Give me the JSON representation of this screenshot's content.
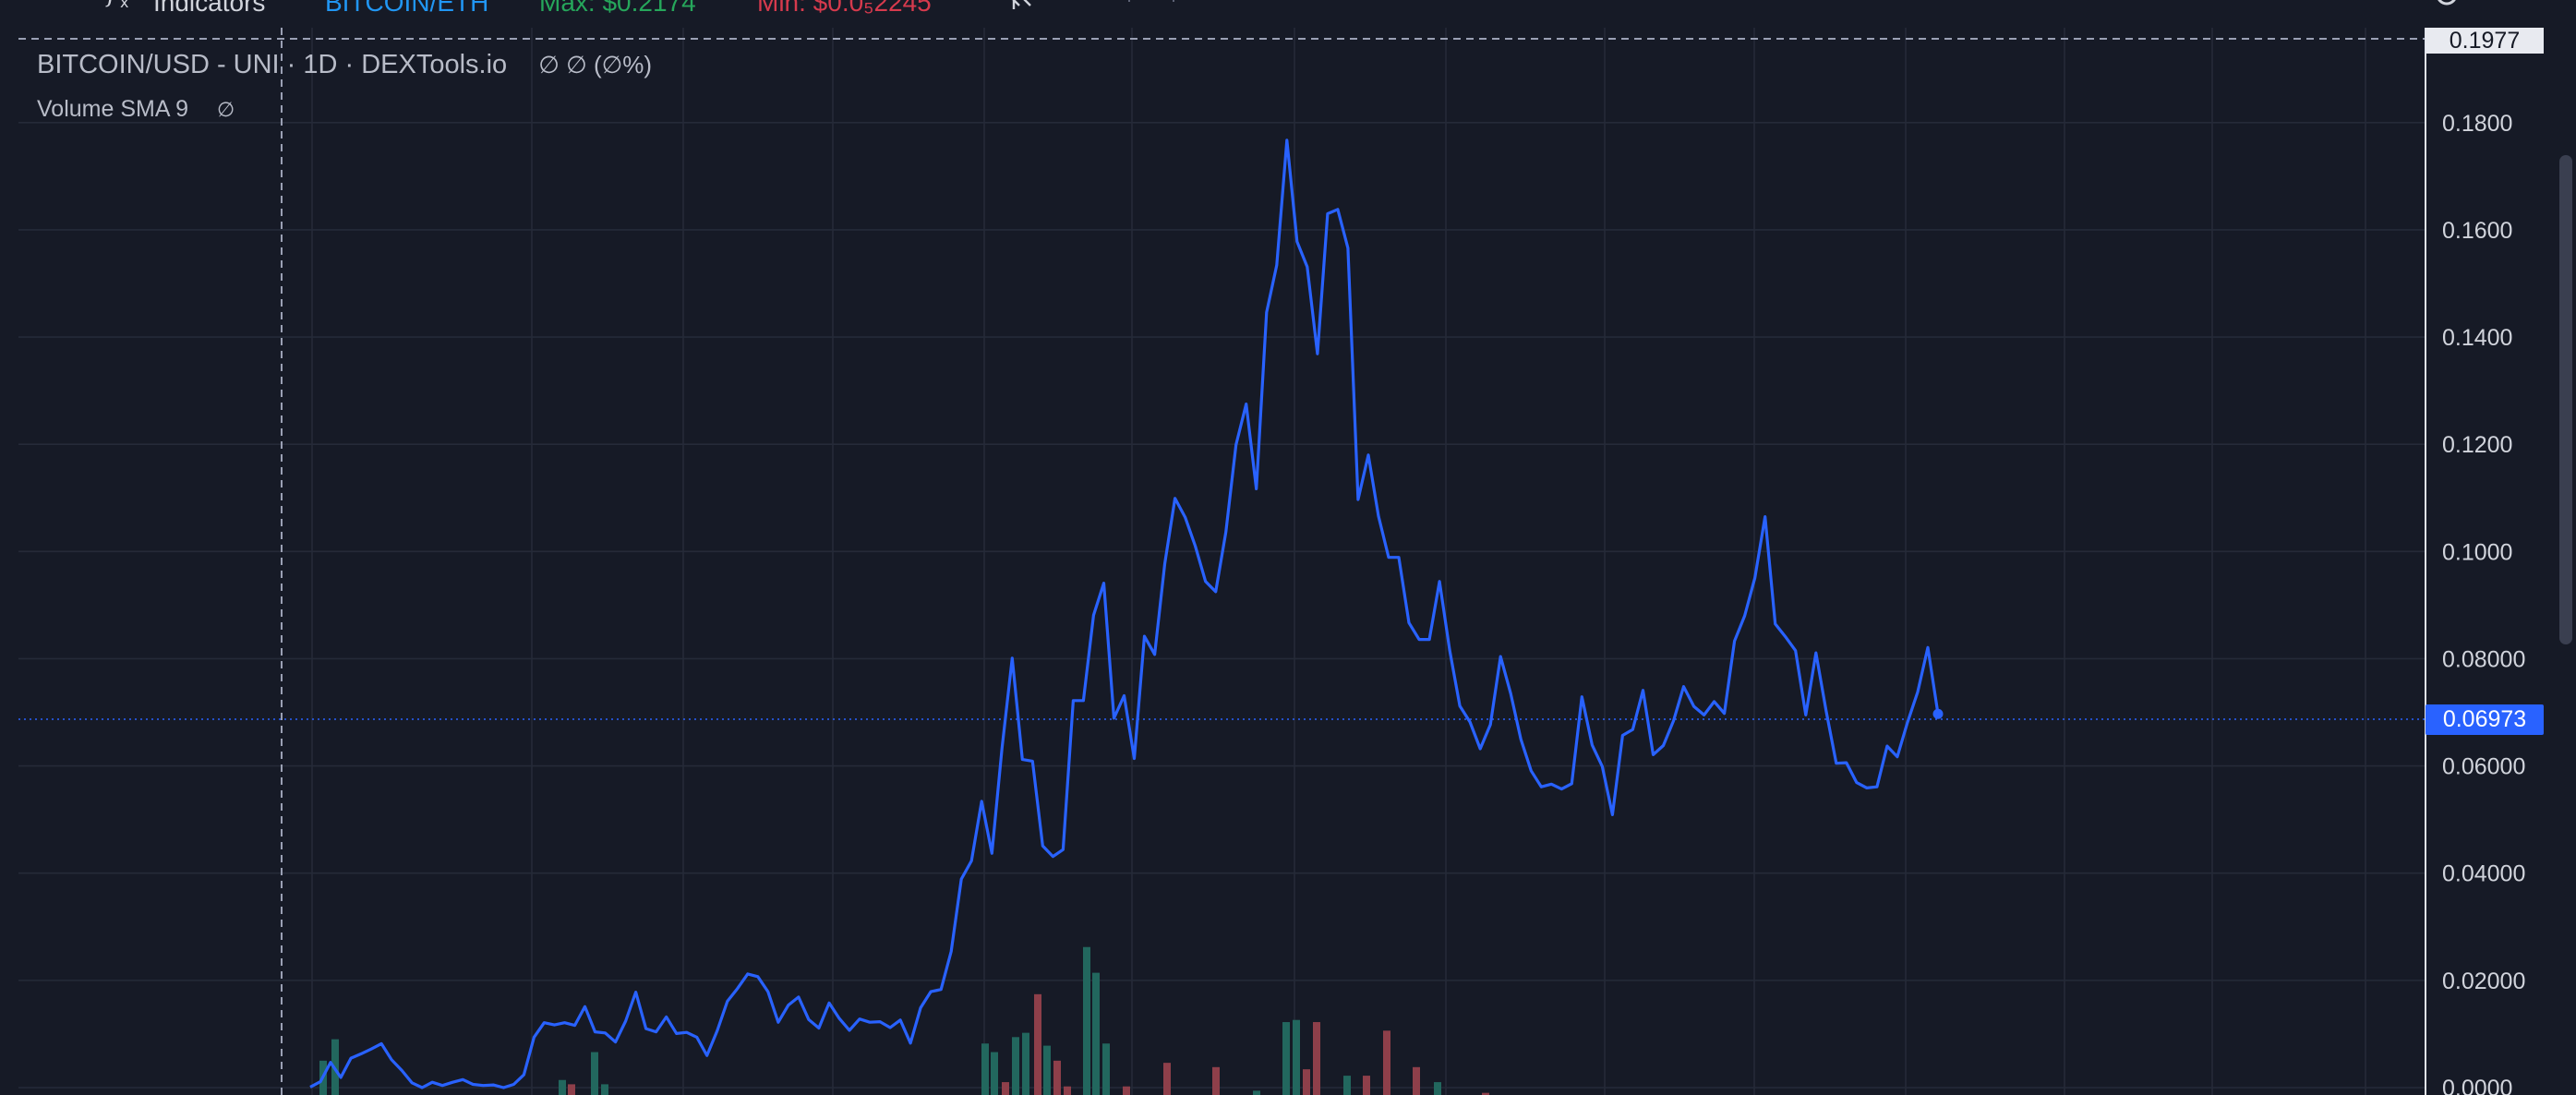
{
  "toolbar": {
    "indicators_label": "Indicators",
    "pair_label": "BITCOIN/ETH",
    "max_label": "Max: $0.2174",
    "min_label": "Min: $0.0₅2245"
  },
  "legend": {
    "title": "BITCOIN/USD - UNI · 1D · DEXTools.io",
    "values": "∅ ∅ (∅%)",
    "volume_label": "Volume SMA 9",
    "volume_value": "∅"
  },
  "colors": {
    "background": "#161a26",
    "line": "#2962ff",
    "volume_up": "#22675e",
    "volume_down": "#8e3f4a",
    "grid": "#252a38",
    "axis_text": "#d1d4dc"
  },
  "icons": [
    "indicators-icon",
    "compare-icon",
    "settings-gear-icon",
    "camera-icon",
    "visibility-icon"
  ],
  "chart_data": {
    "type": "line",
    "title": "BITCOIN/USD - UNI · 1D · DEXTools.io",
    "xlabel": "",
    "ylabel": "",
    "ylim": [
      0,
      0.1977
    ],
    "grid": true,
    "yticks": [
      "0.1977",
      "0.1800",
      "0.1600",
      "0.1400",
      "0.1200",
      "0.1000",
      "0.08000",
      "0.06000",
      "0.04000",
      "0.02000",
      "0.0000"
    ],
    "last_price": "0.06973",
    "series": [
      {
        "values": [
          0.0001,
          0.0011,
          0.0047,
          0.0019,
          0.0055,
          0.0063,
          0.0072,
          0.0082,
          0.0052,
          0.0032,
          0.0009,
          0.0,
          0.001,
          0.0004,
          0.001,
          0.0015,
          0.0006,
          0.0004,
          0.0005,
          0.0,
          0.0006,
          0.0024,
          0.0094,
          0.0121,
          0.0117,
          0.0121,
          0.0116,
          0.0151,
          0.0104,
          0.0102,
          0.0085,
          0.0124,
          0.0178,
          0.011,
          0.0104,
          0.0132,
          0.0101,
          0.0103,
          0.0094,
          0.006,
          0.0106,
          0.0161,
          0.0185,
          0.0212,
          0.0207,
          0.0179,
          0.0122,
          0.0154,
          0.0169,
          0.0127,
          0.0111,
          0.0158,
          0.0129,
          0.0107,
          0.0128,
          0.0122,
          0.0123,
          0.0112,
          0.0126,
          0.0083,
          0.0149,
          0.0179,
          0.0183,
          0.0254,
          0.0389,
          0.0423,
          0.0534,
          0.0437,
          0.0634,
          0.0801,
          0.0612,
          0.0609,
          0.0451,
          0.0431,
          0.0444,
          0.0722,
          0.0722,
          0.0881,
          0.0941,
          0.0689,
          0.0731,
          0.0614,
          0.0842,
          0.0808,
          0.0978,
          0.1099,
          0.1064,
          0.101,
          0.0944,
          0.0925,
          0.1036,
          0.1199,
          0.1275,
          0.1117,
          0.1446,
          0.1534,
          0.1767,
          0.1578,
          0.1531,
          0.1369,
          0.163,
          0.1638,
          0.1566,
          0.1097,
          0.118,
          0.1066,
          0.0989,
          0.0989,
          0.0867,
          0.0836,
          0.0836,
          0.0944,
          0.0816,
          0.0712,
          0.0682,
          0.0632,
          0.0677,
          0.0804,
          0.0735,
          0.065,
          0.0591,
          0.0561,
          0.0566,
          0.0557,
          0.0567,
          0.0729,
          0.0639,
          0.0599,
          0.0509,
          0.0657,
          0.0668,
          0.0741,
          0.0621,
          0.0638,
          0.0684,
          0.0748,
          0.0711,
          0.0695,
          0.072,
          0.0698,
          0.0833,
          0.088,
          0.0951,
          0.1065,
          0.0865,
          0.0841,
          0.0815,
          0.0695,
          0.0811,
          0.0703,
          0.0605,
          0.0606,
          0.0569,
          0.0559,
          0.0561,
          0.0637,
          0.0617,
          0.0681,
          0.0738,
          0.0821,
          0.0697
        ]
      }
    ],
    "volume": {
      "bars": [
        {
          "x": 346,
          "h": 0.16,
          "dir": "up"
        },
        {
          "x": 359,
          "h": 0.26,
          "dir": "up"
        },
        {
          "x": 605,
          "h": 0.07,
          "dir": "up"
        },
        {
          "x": 615,
          "h": 0.05,
          "dir": "down"
        },
        {
          "x": 640,
          "h": 0.2,
          "dir": "up"
        },
        {
          "x": 651,
          "h": 0.05,
          "dir": "up"
        },
        {
          "x": 1063,
          "h": 0.24,
          "dir": "up"
        },
        {
          "x": 1073,
          "h": 0.2,
          "dir": "up"
        },
        {
          "x": 1085,
          "h": 0.06,
          "dir": "down"
        },
        {
          "x": 1096,
          "h": 0.27,
          "dir": "up"
        },
        {
          "x": 1107,
          "h": 0.29,
          "dir": "up"
        },
        {
          "x": 1120,
          "h": 0.47,
          "dir": "down"
        },
        {
          "x": 1130,
          "h": 0.23,
          "dir": "up"
        },
        {
          "x": 1141,
          "h": 0.16,
          "dir": "down"
        },
        {
          "x": 1152,
          "h": 0.04,
          "dir": "down"
        },
        {
          "x": 1173,
          "h": 0.69,
          "dir": "up"
        },
        {
          "x": 1183,
          "h": 0.57,
          "dir": "up"
        },
        {
          "x": 1194,
          "h": 0.24,
          "dir": "up"
        },
        {
          "x": 1216,
          "h": 0.04,
          "dir": "down"
        },
        {
          "x": 1260,
          "h": 0.15,
          "dir": "down"
        },
        {
          "x": 1313,
          "h": 0.13,
          "dir": "down"
        },
        {
          "x": 1357,
          "h": 0.02,
          "dir": "up"
        },
        {
          "x": 1389,
          "h": 0.34,
          "dir": "up"
        },
        {
          "x": 1400,
          "h": 0.35,
          "dir": "up"
        },
        {
          "x": 1411,
          "h": 0.12,
          "dir": "down"
        },
        {
          "x": 1422,
          "h": 0.34,
          "dir": "down"
        },
        {
          "x": 1455,
          "h": 0.09,
          "dir": "up"
        },
        {
          "x": 1476,
          "h": 0.09,
          "dir": "down"
        },
        {
          "x": 1498,
          "h": 0.3,
          "dir": "down"
        },
        {
          "x": 1530,
          "h": 0.13,
          "dir": "down"
        },
        {
          "x": 1553,
          "h": 0.06,
          "dir": "up"
        },
        {
          "x": 1605,
          "h": 0.01,
          "dir": "down"
        }
      ]
    }
  }
}
